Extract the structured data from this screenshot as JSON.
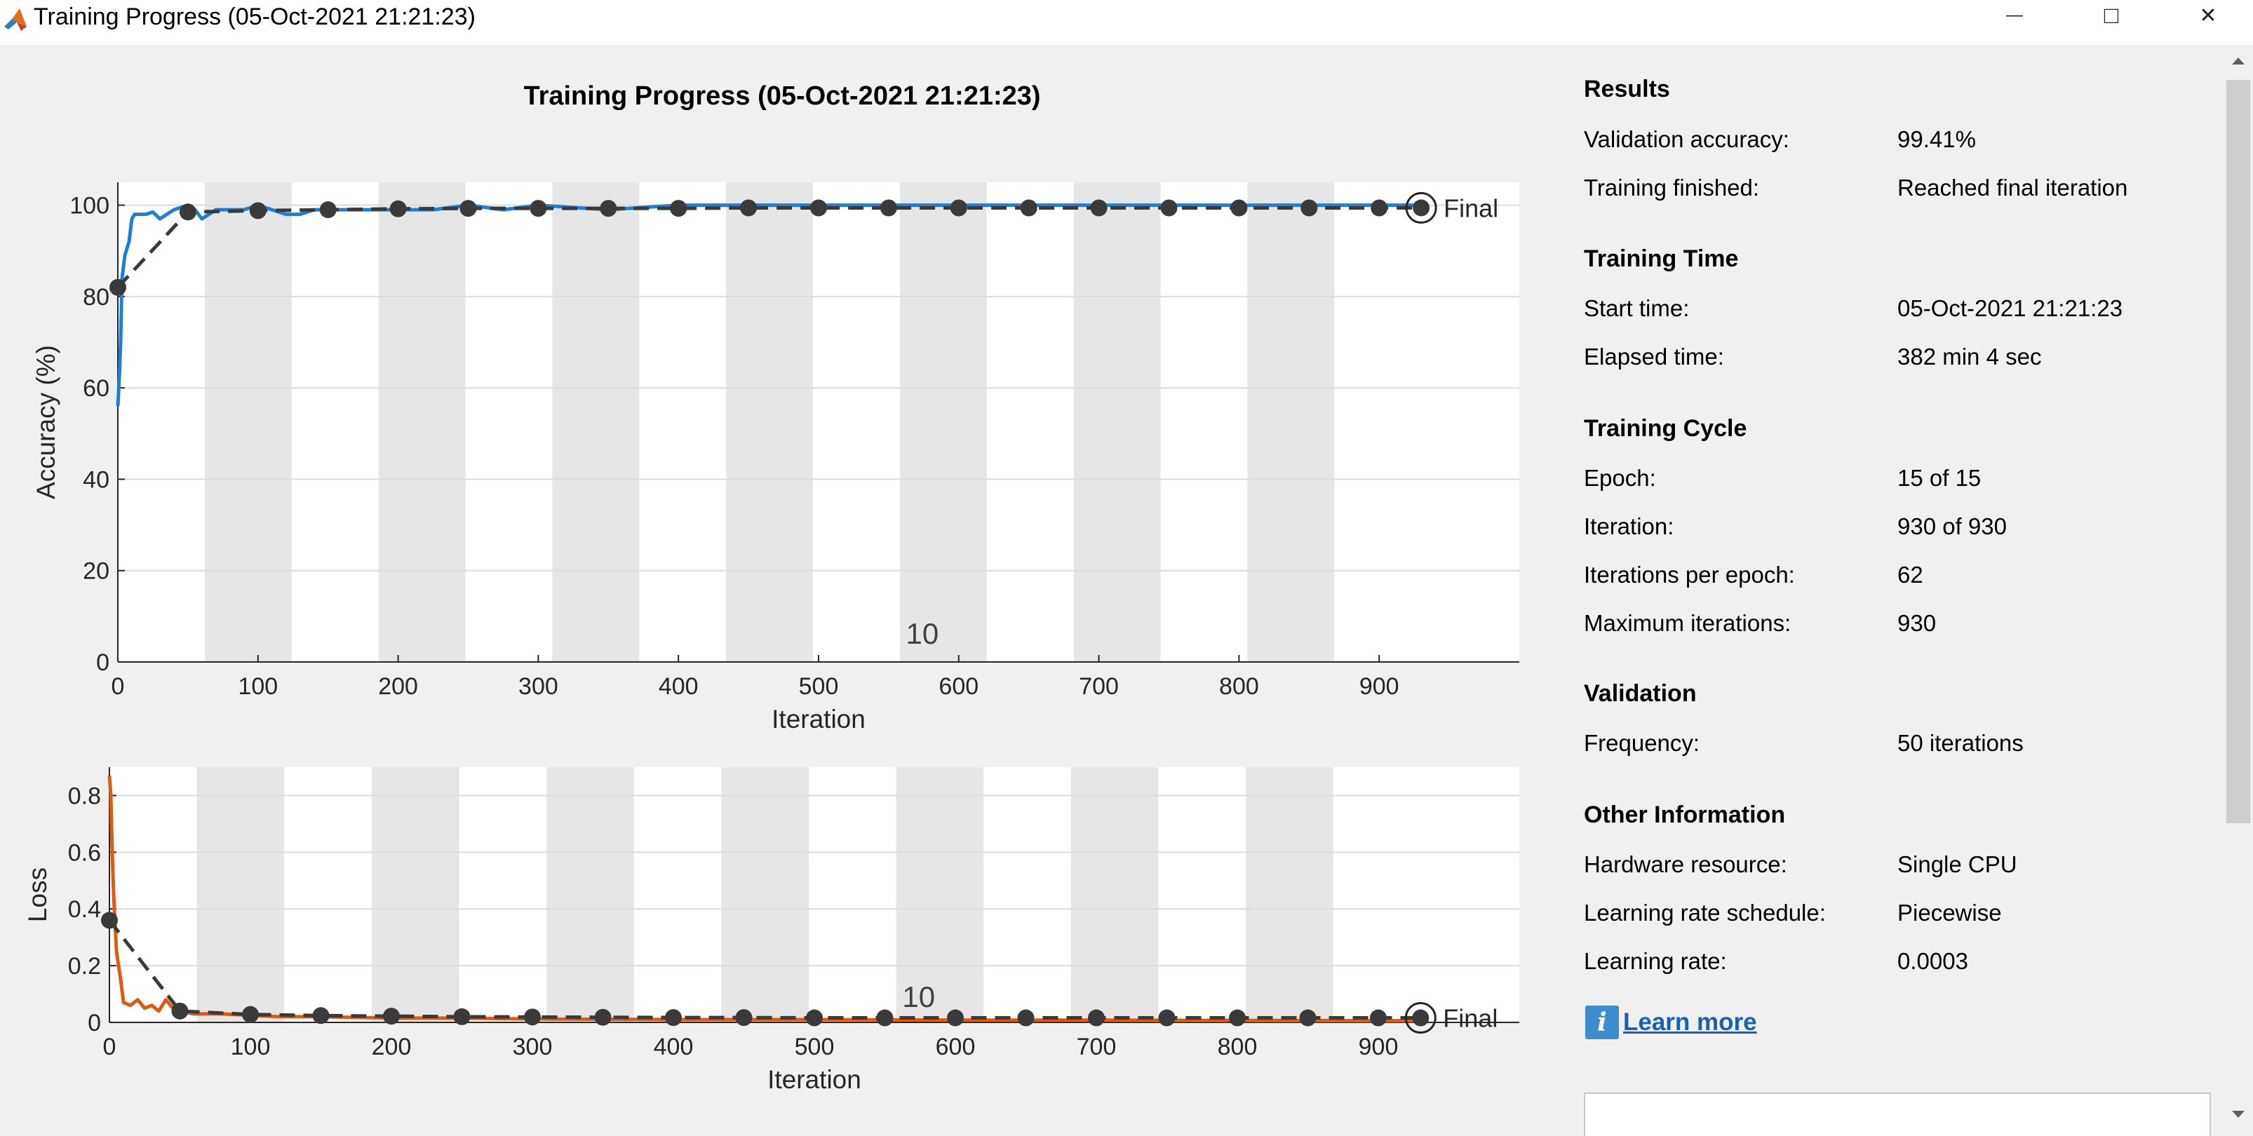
{
  "window": {
    "title": "Training Progress (05-Oct-2021 21:21:23)",
    "minimize_glyph": "—",
    "maximize_glyph": "□",
    "close_glyph": "✕"
  },
  "figure_title": "Training Progress (05-Oct-2021 21:21:23)",
  "results": {
    "section_results": "Results",
    "validation_accuracy_label": "Validation accuracy:",
    "validation_accuracy_value": "99.41%",
    "training_finished_label": "Training finished:",
    "training_finished_value": "Reached final iteration",
    "section_time": "Training Time",
    "start_time_label": "Start time:",
    "start_time_value": "05-Oct-2021 21:21:23",
    "elapsed_label": "Elapsed time:",
    "elapsed_value": "382 min 4 sec",
    "section_cycle": "Training Cycle",
    "epoch_label": "Epoch:",
    "epoch_value": "15 of 15",
    "iteration_label": "Iteration:",
    "iteration_value": "930 of 930",
    "ipe_label": "Iterations per epoch:",
    "ipe_value": "62",
    "maxit_label": "Maximum iterations:",
    "maxit_value": "930",
    "section_validation": "Validation",
    "frequency_label": "Frequency:",
    "frequency_value": "50 iterations",
    "section_other": "Other Information",
    "hardware_label": "Hardware resource:",
    "hardware_value": "Single CPU",
    "lrs_label": "Learning rate schedule:",
    "lrs_value": "Piecewise",
    "lr_label": "Learning rate:",
    "lr_value": "0.0003",
    "learn_more": "Learn more",
    "info_glyph": "i"
  },
  "colors": {
    "accuracy_line": "#1f7fd4",
    "loss_line": "#e05a10",
    "validation": "#3a3a3a",
    "epoch_band": "#e6e6e6"
  },
  "chart_data": [
    {
      "type": "line",
      "name": "accuracy",
      "ylabel": "Accuracy (%)",
      "xlabel": "Iteration",
      "xlim": [
        0,
        1000
      ],
      "ylim": [
        0,
        105
      ],
      "xticks": [
        0,
        100,
        200,
        300,
        400,
        500,
        600,
        700,
        800,
        900
      ],
      "yticks": [
        0,
        20,
        40,
        60,
        80,
        100
      ],
      "epoch_boundaries": [
        62,
        124,
        186,
        248,
        310,
        372,
        434,
        496,
        558,
        620,
        682,
        744,
        806,
        868,
        930
      ],
      "epoch_annotation": "10",
      "epoch_annotation_x": 574,
      "final_label": "Final",
      "training": {
        "x": [
          0,
          1,
          2,
          3,
          5,
          8,
          10,
          12,
          15,
          20,
          25,
          30,
          35,
          40,
          45,
          50,
          55,
          60,
          65,
          70,
          80,
          90,
          100,
          110,
          120,
          130,
          140,
          150,
          175,
          200,
          225,
          250,
          275,
          300,
          350,
          400,
          450,
          500,
          550,
          600,
          650,
          700,
          750,
          800,
          850,
          900,
          930
        ],
        "y": [
          56,
          62,
          70,
          84,
          89,
          92,
          97,
          98,
          98,
          98,
          98.5,
          97,
          98,
          99,
          99.5,
          100,
          99,
          97,
          98,
          99,
          99,
          99,
          100,
          99,
          98,
          98,
          99,
          99,
          99,
          99,
          99,
          100,
          99,
          100,
          99,
          100,
          100,
          100,
          100,
          100,
          100,
          100,
          100,
          100,
          100,
          100,
          100
        ]
      },
      "validation": {
        "x": [
          0,
          50,
          100,
          150,
          200,
          250,
          300,
          350,
          400,
          450,
          500,
          550,
          600,
          650,
          700,
          750,
          800,
          850,
          900,
          930
        ],
        "y": [
          82,
          98.5,
          98.8,
          99,
          99.2,
          99.3,
          99.3,
          99.3,
          99.3,
          99.4,
          99.4,
          99.4,
          99.4,
          99.4,
          99.4,
          99.4,
          99.4,
          99.4,
          99.4,
          99.41
        ]
      }
    },
    {
      "type": "line",
      "name": "loss",
      "ylabel": "Loss",
      "xlabel": "Iteration",
      "xlim": [
        0,
        1000
      ],
      "ylim": [
        0,
        0.9
      ],
      "xticks": [
        0,
        100,
        200,
        300,
        400,
        500,
        600,
        700,
        800,
        900
      ],
      "yticks": [
        0,
        0.2,
        0.4,
        0.6,
        0.8
      ],
      "epoch_boundaries": [
        62,
        124,
        186,
        248,
        310,
        372,
        434,
        496,
        558,
        620,
        682,
        744,
        806,
        868,
        930
      ],
      "epoch_annotation": "10",
      "epoch_annotation_x": 574,
      "final_label": "Final",
      "training": {
        "x": [
          0,
          1,
          2,
          3,
          5,
          8,
          10,
          15,
          20,
          25,
          30,
          35,
          40,
          45,
          50,
          60,
          70,
          80,
          100,
          120,
          150,
          200,
          250,
          300,
          400,
          500,
          600,
          700,
          800,
          900,
          930
        ],
        "y": [
          0.87,
          0.8,
          0.6,
          0.45,
          0.25,
          0.15,
          0.07,
          0.06,
          0.08,
          0.05,
          0.06,
          0.04,
          0.08,
          0.05,
          0.04,
          0.03,
          0.03,
          0.03,
          0.025,
          0.02,
          0.02,
          0.015,
          0.015,
          0.012,
          0.01,
          0.01,
          0.008,
          0.008,
          0.007,
          0.006,
          0.006
        ]
      },
      "validation": {
        "x": [
          0,
          50,
          100,
          150,
          200,
          250,
          300,
          350,
          400,
          450,
          500,
          550,
          600,
          650,
          700,
          750,
          800,
          850,
          900,
          930
        ],
        "y": [
          0.36,
          0.04,
          0.028,
          0.024,
          0.022,
          0.02,
          0.019,
          0.018,
          0.017,
          0.017,
          0.016,
          0.016,
          0.016,
          0.016,
          0.016,
          0.016,
          0.016,
          0.016,
          0.016,
          0.016
        ]
      }
    }
  ]
}
